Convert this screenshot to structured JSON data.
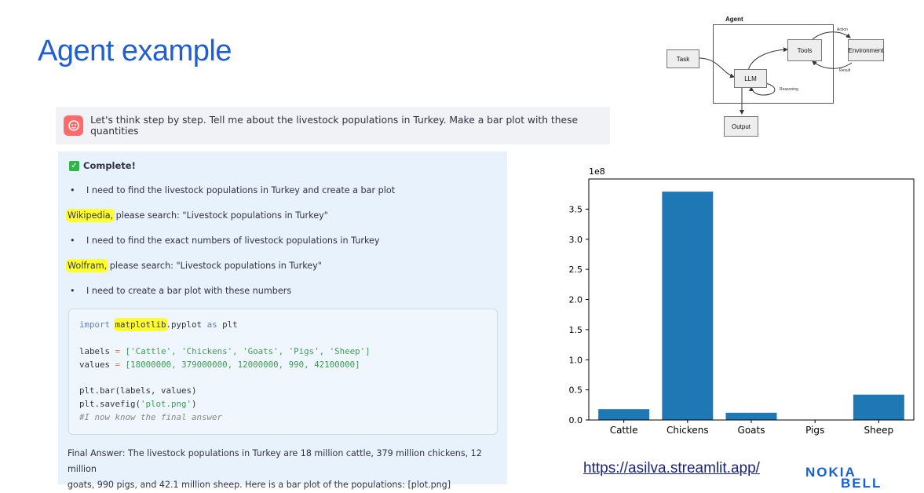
{
  "slide": {
    "title": "Agent example",
    "url": "https://asilva.streamlit.app/",
    "logo_text_1": "NOKIA",
    "logo_text_2": "BELL"
  },
  "diagram": {
    "frame_label": "Agent",
    "task": "Task",
    "tools": "Tools",
    "environment": "Environment",
    "llm": "LLM",
    "output": "Output",
    "action": "Action",
    "result": "Result",
    "reasoning": "Reasoning"
  },
  "chat": {
    "user_prompt": "Let's think step by step. Tell me about the livestock populations in Turkey. Make a bar plot with these quantities",
    "status": "Complete!",
    "steps": {
      "thought_1": "I need to find the livestock populations in Turkey and create a bar plot",
      "tool_1": "Wikipedia,",
      "query_1": " please search: \"Livestock populations in Turkey\"",
      "thought_2": "I need to find the exact numbers of livestock populations in Turkey",
      "tool_2": "Wolfram,",
      "query_2": " please search: \"Livestock populations in Turkey\"",
      "thought_3": "I need to create a bar plot with these numbers"
    },
    "code": {
      "l1_import": "import",
      "l1_module": "matplotlib",
      "l1_rest": ".pyplot",
      "l1_as": "as",
      "l1_alias": "plt",
      "l2_var": "labels",
      "l2_eq": "=",
      "l2_val": "['Cattle', 'Chickens', 'Goats', 'Pigs', 'Sheep']",
      "l3_var": "values",
      "l3_eq": "=",
      "l3_val": "[18000000, 379000000, 12000000, 990, 42100000]",
      "l4": "plt.bar(labels, values)",
      "l5_pre": "plt.savefig(",
      "l5_str": "'plot.png'",
      "l5_post": ")",
      "l6": "#I now know the final answer"
    },
    "final_answer_1": "Final Answer: The livestock populations in Turkey are 18 million cattle, 379 million chickens, 12 million",
    "final_answer_2": "goats, 990 pigs, and 42.1 million sheep. Here is a bar plot of the populations: [plot.png]"
  },
  "colors": {
    "title_blue": "#1f5fd1",
    "bar": "#1f77b4",
    "highlight": "#ffff2e",
    "panel_bg": "#e8f2fc"
  },
  "chart_data": {
    "type": "bar",
    "categories": [
      "Cattle",
      "Chickens",
      "Goats",
      "Pigs",
      "Sheep"
    ],
    "values": [
      18000000,
      379000000,
      12000000,
      990,
      42100000
    ],
    "title": "",
    "xlabel": "",
    "ylabel": "",
    "ylim": [
      0,
      400000000
    ],
    "scale_label": "1e8",
    "yticks": [
      0,
      0.5,
      1.0,
      1.5,
      2.0,
      2.5,
      3.0,
      3.5
    ],
    "ytick_labels": [
      "0.0",
      "0.5",
      "1.0",
      "1.5",
      "2.0",
      "2.5",
      "3.0",
      "3.5"
    ],
    "grid": false
  }
}
